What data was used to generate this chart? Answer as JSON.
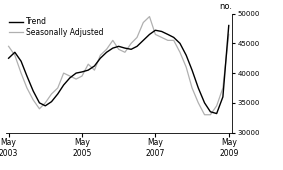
{
  "ylabel": "no.",
  "ylim": [
    30000,
    50000
  ],
  "yticks": [
    30000,
    35000,
    40000,
    45000,
    50000
  ],
  "xlim_start": 2003.25,
  "xlim_end": 2009.42,
  "xtick_positions": [
    2003.33,
    2005.33,
    2007.33,
    2009.33
  ],
  "xtick_labels": [
    "May\n2003",
    "May\n2005",
    "May\n2007",
    "May\n2009"
  ],
  "legend_entries": [
    "Trend",
    "Seasonally Adjusted"
  ],
  "trend_color": "#000000",
  "seasonal_color": "#b0b0b0",
  "background_color": "#ffffff",
  "trend_data": {
    "t": [
      2003.33,
      2003.5,
      2003.67,
      2003.83,
      2004.0,
      2004.17,
      2004.33,
      2004.5,
      2004.67,
      2004.83,
      2005.0,
      2005.17,
      2005.33,
      2005.5,
      2005.67,
      2005.83,
      2006.0,
      2006.17,
      2006.33,
      2006.5,
      2006.67,
      2006.83,
      2007.0,
      2007.17,
      2007.33,
      2007.5,
      2007.67,
      2007.83,
      2008.0,
      2008.17,
      2008.33,
      2008.5,
      2008.67,
      2008.83,
      2009.0,
      2009.17,
      2009.33
    ],
    "v": [
      42500,
      43500,
      42000,
      39500,
      37000,
      35000,
      34500,
      35200,
      36500,
      38000,
      39200,
      40000,
      40200,
      40500,
      41200,
      42500,
      43500,
      44200,
      44500,
      44200,
      44000,
      44500,
      45500,
      46500,
      47200,
      47000,
      46500,
      46000,
      45000,
      43000,
      40500,
      37500,
      35000,
      33500,
      33200,
      36000,
      48000
    ]
  },
  "seasonal_data": {
    "t": [
      2003.33,
      2003.5,
      2003.67,
      2003.83,
      2004.0,
      2004.17,
      2004.33,
      2004.5,
      2004.67,
      2004.83,
      2005.0,
      2005.17,
      2005.33,
      2005.5,
      2005.67,
      2005.83,
      2006.0,
      2006.17,
      2006.33,
      2006.5,
      2006.67,
      2006.83,
      2007.0,
      2007.17,
      2007.33,
      2007.5,
      2007.67,
      2007.83,
      2008.0,
      2008.17,
      2008.33,
      2008.5,
      2008.67,
      2008.83,
      2009.0,
      2009.17,
      2009.33
    ],
    "v": [
      44500,
      43000,
      40000,
      37500,
      35500,
      34000,
      35000,
      36500,
      37500,
      40000,
      39500,
      39000,
      39500,
      41500,
      40500,
      43000,
      44000,
      45500,
      44000,
      43500,
      45000,
      46000,
      48500,
      49500,
      46500,
      46000,
      45500,
      45500,
      43500,
      41000,
      37500,
      35000,
      33000,
      33000,
      34500,
      37500,
      46500
    ]
  }
}
